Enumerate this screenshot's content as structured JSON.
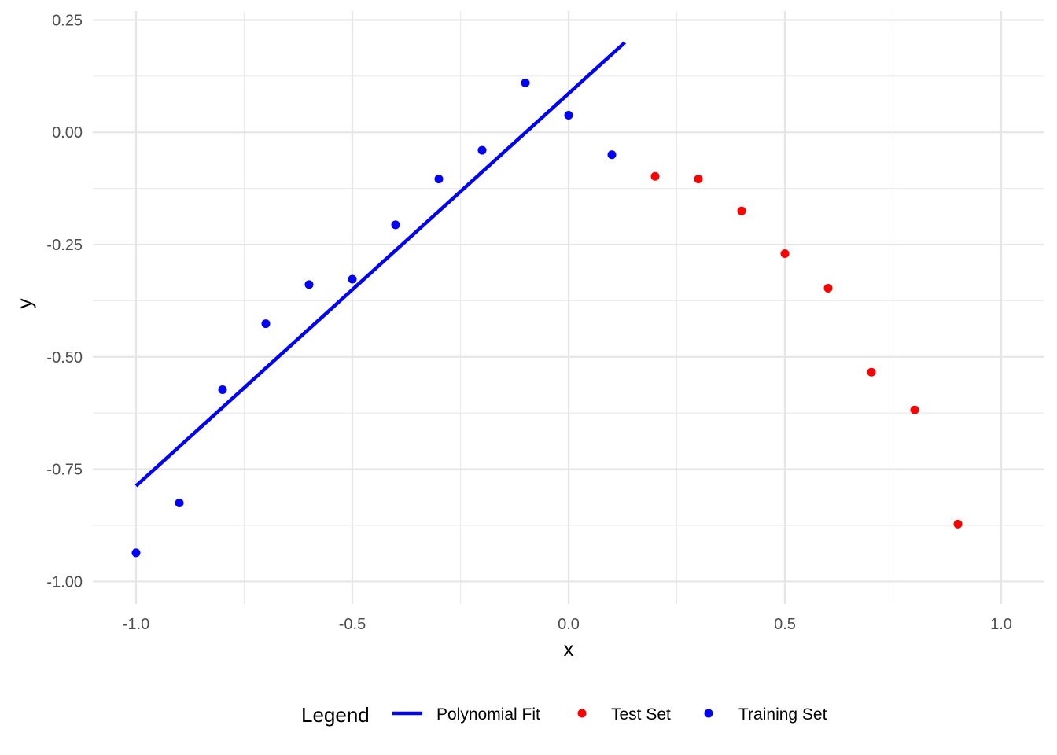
{
  "chart_data": {
    "type": "scatter",
    "xlabel": "x",
    "ylabel": "y",
    "xlim": [
      -1.1,
      1.1
    ],
    "ylim": [
      -1.05,
      0.27
    ],
    "x_ticks": [
      -1.0,
      -0.5,
      0.0,
      0.5,
      1.0
    ],
    "x_tick_labels": [
      "-1.0",
      "-0.5",
      "0.0",
      "0.5",
      "1.0"
    ],
    "y_ticks": [
      0.25,
      0.0,
      -0.25,
      -0.5,
      -0.75,
      -1.0
    ],
    "y_tick_labels": [
      "0.25",
      "0.00",
      "-0.25",
      "-0.50",
      "-0.75",
      "-1.00"
    ],
    "grid": true,
    "legend": {
      "title": "Legend",
      "placement": "bottom",
      "entries": [
        {
          "label": "Polynomial Fit",
          "kind": "line",
          "color": "#0000ff"
        },
        {
          "label": "Test Set",
          "kind": "point",
          "color": "#ff0000"
        },
        {
          "label": "Training Set",
          "kind": "point",
          "color": "#0000ff"
        }
      ]
    },
    "series": [
      {
        "name": "Training Set",
        "kind": "point",
        "color": "#0000ff",
        "x": [
          -1.0,
          -0.9,
          -0.8,
          -0.7,
          -0.6,
          -0.5,
          -0.4,
          -0.3,
          -0.2,
          -0.1,
          0.0,
          0.1
        ],
        "y": [
          -0.936,
          -0.825,
          -0.573,
          -0.426,
          -0.339,
          -0.327,
          -0.206,
          -0.104,
          -0.04,
          0.11,
          0.038,
          -0.05
        ]
      },
      {
        "name": "Test Set",
        "kind": "point",
        "color": "#ff0000",
        "x": [
          0.2,
          0.3,
          0.4,
          0.5,
          0.6,
          0.7,
          0.8,
          0.9
        ],
        "y": [
          -0.098,
          -0.104,
          -0.175,
          -0.27,
          -0.347,
          -0.534,
          -0.618,
          -0.872
        ]
      },
      {
        "name": "Polynomial Fit",
        "kind": "line",
        "color": "#0000ff",
        "x": [
          -1.0,
          0.13
        ],
        "y": [
          -0.787,
          0.2
        ]
      }
    ]
  }
}
